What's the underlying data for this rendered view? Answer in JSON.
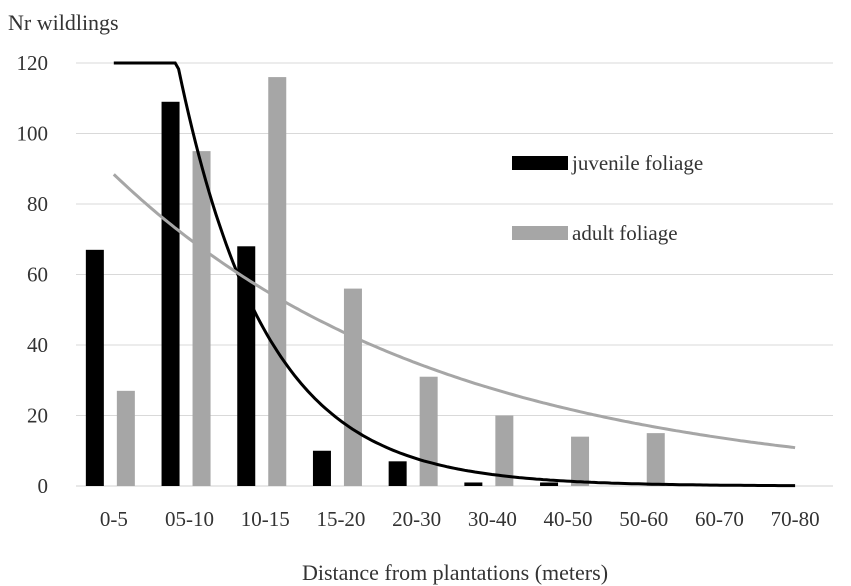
{
  "chart_data": {
    "type": "bar",
    "title": "",
    "ylabel": "Nr wildlings",
    "xlabel": "Distance from plantations (meters)",
    "categories": [
      "0-5",
      "05-10",
      "10-15",
      "15-20",
      "20-30",
      "30-40",
      "40-50",
      "50-60",
      "60-70",
      "70-80"
    ],
    "ylim": [
      0,
      120
    ],
    "yticks": [
      0,
      20,
      40,
      60,
      80,
      100,
      120
    ],
    "grid": true,
    "legend_position": "upper-right",
    "series": [
      {
        "name": "juvenile foliage",
        "color": "#000000",
        "values": [
          67,
          109,
          68,
          10,
          7,
          1,
          1,
          0,
          0,
          0
        ]
      },
      {
        "name": "adult foliage",
        "color": "#a6a6a6",
        "values": [
          27,
          95,
          116,
          56,
          31,
          20,
          14,
          15,
          0,
          0
        ]
      }
    ],
    "trendlines": [
      {
        "series": "juvenile foliage",
        "type": "exponential",
        "color": "#000000"
      },
      {
        "series": "adult foliage",
        "type": "exponential",
        "color": "#a6a6a6"
      }
    ]
  }
}
